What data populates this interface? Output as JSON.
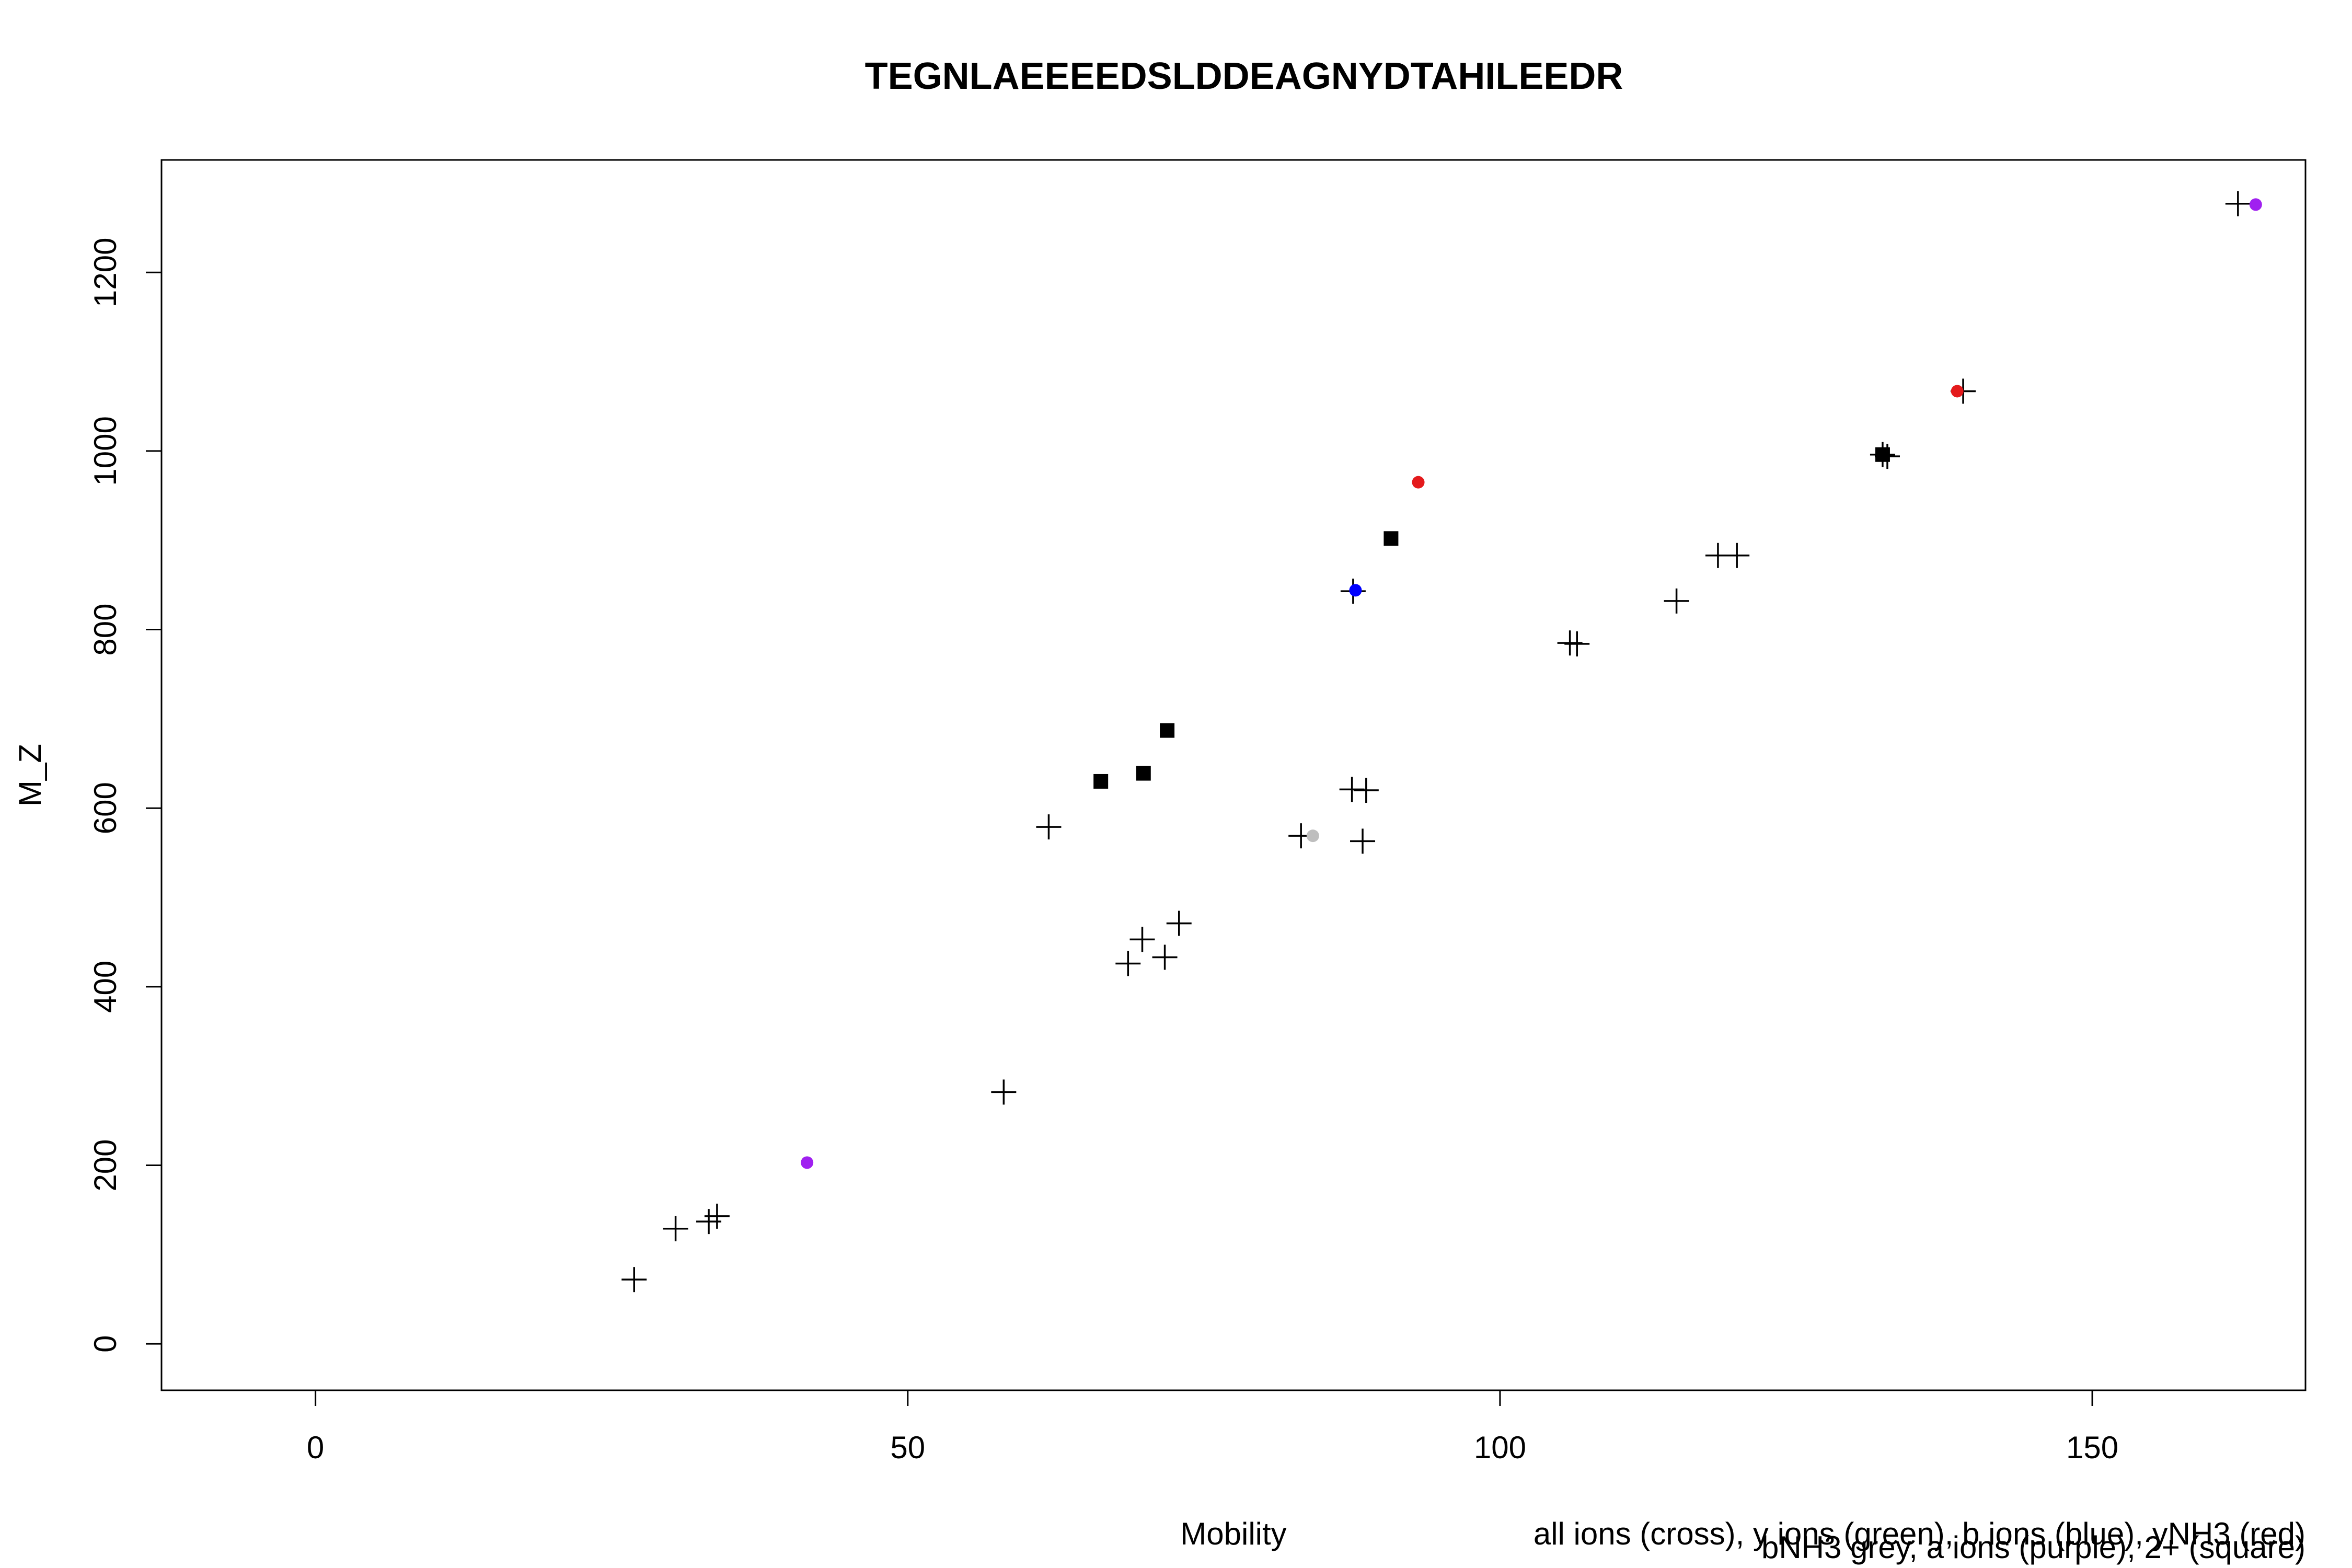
{
  "chart_data": {
    "type": "scatter",
    "title": "TEGNLAEEEEDSLDDEAGNYDTAHILEEDR",
    "xlabel": "Mobility",
    "ylabel": "M_Z",
    "xlim": [
      -13,
      168
    ],
    "ylim": [
      -52,
      1326
    ],
    "x_ticks": [
      0,
      50,
      100,
      150
    ],
    "y_ticks": [
      0,
      200,
      400,
      600,
      800,
      1000,
      1200
    ],
    "grid": false,
    "legend_notes": [
      "all ions (cross), y ions (green), b ions (blue), yNH3 (red)",
      "bNH3 grey, a ions (purple), 2+ (square)"
    ],
    "colors": {
      "cross": "#000000",
      "square": "#000000",
      "b": "#0000ff",
      "yNH3": "#e41a1c",
      "bNH3": "#bebebe",
      "a": "#a020f0"
    },
    "series": [
      {
        "marker": "cross",
        "color": "#000000",
        "points": [
          [
            26.9,
            72
          ],
          [
            30.4,
            129
          ],
          [
            33.2,
            137
          ],
          [
            33.9,
            143
          ],
          [
            58.1,
            282
          ],
          [
            61.9,
            579
          ],
          [
            68.6,
            426
          ],
          [
            69.8,
            453
          ],
          [
            71.7,
            433
          ],
          [
            72.9,
            471
          ],
          [
            83.2,
            569
          ],
          [
            87.5,
            621
          ],
          [
            88.7,
            620
          ],
          [
            88.4,
            563
          ],
          [
            87.6,
            843
          ],
          [
            105.9,
            785
          ],
          [
            106.5,
            784
          ],
          [
            114.9,
            832
          ],
          [
            118.4,
            883
          ],
          [
            120.0,
            883
          ],
          [
            132.3,
            996
          ],
          [
            132.7,
            994
          ],
          [
            139.1,
            1067
          ],
          [
            162.3,
            1277
          ]
        ]
      },
      {
        "marker": "square",
        "color": "#000000",
        "points": [
          [
            66.3,
            630
          ],
          [
            69.9,
            639
          ],
          [
            71.9,
            687
          ],
          [
            90.8,
            902
          ],
          [
            132.3,
            996
          ]
        ]
      },
      {
        "marker": "dot",
        "color": "#0000ff",
        "points": [
          [
            87.8,
            844
          ]
        ]
      },
      {
        "marker": "dot",
        "color": "#e41a1c",
        "points": [
          [
            93.1,
            965
          ],
          [
            138.6,
            1067
          ]
        ]
      },
      {
        "marker": "dot",
        "color": "#bebebe",
        "points": [
          [
            84.2,
            569
          ]
        ]
      },
      {
        "marker": "dot",
        "color": "#a020f0",
        "points": [
          [
            41.5,
            203
          ],
          [
            163.8,
            1276
          ]
        ]
      }
    ]
  }
}
